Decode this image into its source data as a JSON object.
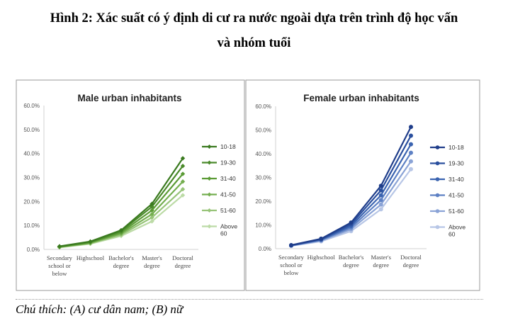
{
  "figure": {
    "title_line1": "Hình 2: Xác suất có ý định di cư ra nước ngoài dựa trên trình độ học vấn",
    "title_line2": "và nhóm tuổi",
    "caption": "Chú thích: (A) cư dân nam; (B) nữ"
  },
  "chart_data": [
    {
      "type": "line",
      "title": "Male urban inhabitants",
      "categories": [
        [
          "Secondary",
          "school or",
          "below"
        ],
        [
          "Highschool"
        ],
        [
          "Bachelor's",
          "degree"
        ],
        [
          "Master's",
          "degree"
        ],
        [
          "Doctoral",
          "degree"
        ]
      ],
      "ylim": [
        0,
        60
      ],
      "yticks": [
        "0.0%",
        "10.0%",
        "20.0%",
        "30.0%",
        "40.0%",
        "50.0%",
        "60.0%"
      ],
      "marker": "diamond",
      "legend_position": "right",
      "series": [
        {
          "name": "10-18",
          "color": "#3a7a1f",
          "values": [
            1.3,
            3.3,
            8.0,
            19.0,
            38.0
          ]
        },
        {
          "name": "19-30",
          "color": "#4a8a2a",
          "values": [
            1.2,
            3.1,
            7.6,
            17.8,
            34.8
          ]
        },
        {
          "name": "31-40",
          "color": "#5b9b35",
          "values": [
            1.1,
            2.9,
            7.1,
            16.3,
            31.5
          ]
        },
        {
          "name": "41-50",
          "color": "#74ae4f",
          "values": [
            1.0,
            2.7,
            6.6,
            14.7,
            28.3
          ]
        },
        {
          "name": "51-60",
          "color": "#97c478",
          "values": [
            0.9,
            2.5,
            6.1,
            13.3,
            25.1
          ]
        },
        {
          "name": "Above 60",
          "color": "#bcdba6",
          "values": [
            0.8,
            2.3,
            5.6,
            11.7,
            22.6
          ]
        }
      ]
    },
    {
      "type": "line",
      "title": "Female urban inhabitants",
      "categories": [
        [
          "Secondary",
          "school or",
          "below"
        ],
        [
          "Highschool"
        ],
        [
          "Bachelor's",
          "degree"
        ],
        [
          "Master's",
          "degree"
        ],
        [
          "Doctoral",
          "degree"
        ]
      ],
      "ylim": [
        0,
        60
      ],
      "yticks": [
        "0.0%",
        "10.0%",
        "20.0%",
        "30.0%",
        "40.0%",
        "50.0%",
        "60.0%"
      ],
      "marker": "circle",
      "legend_position": "right",
      "series": [
        {
          "name": "10-18",
          "color": "#1f3d8a",
          "values": [
            1.5,
            4.2,
            11.0,
            26.5,
            51.3
          ]
        },
        {
          "name": "19-30",
          "color": "#2a4f9e",
          "values": [
            1.4,
            4.0,
            10.3,
            24.6,
            47.6
          ]
        },
        {
          "name": "31-40",
          "color": "#3a63b0",
          "values": [
            1.4,
            3.8,
            9.6,
            22.5,
            44.0
          ]
        },
        {
          "name": "41-50",
          "color": "#5e81c4",
          "values": [
            1.3,
            3.6,
            8.9,
            20.5,
            40.4
          ]
        },
        {
          "name": "51-60",
          "color": "#8aa3d6",
          "values": [
            1.3,
            3.4,
            8.2,
            18.6,
            36.8
          ]
        },
        {
          "name": "Above 60",
          "color": "#b7c6e6",
          "values": [
            1.2,
            3.1,
            7.4,
            16.6,
            33.5
          ]
        }
      ]
    }
  ]
}
